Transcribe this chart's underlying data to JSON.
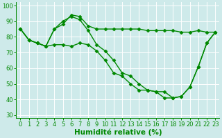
{
  "background_color": "#ceeaea",
  "grid_color": "#ffffff",
  "line_color": "#008800",
  "marker": "D",
  "markersize": 2.5,
  "linewidth": 1.0,
  "xlabel": "Humidité relative (%)",
  "xlabel_color": "#008800",
  "xlabel_fontsize": 7.5,
  "tick_color": "#008800",
  "tick_fontsize": 6,
  "ylim": [
    28,
    102
  ],
  "xlim": [
    -0.5,
    23.5
  ],
  "yticks": [
    30,
    40,
    50,
    60,
    70,
    80,
    90,
    100
  ],
  "xticks": [
    0,
    1,
    2,
    3,
    4,
    5,
    6,
    7,
    8,
    9,
    10,
    11,
    12,
    13,
    14,
    15,
    16,
    17,
    18,
    19,
    20,
    21,
    22,
    23
  ],
  "series": [
    [
      85,
      78,
      76,
      74,
      85,
      88,
      94,
      93,
      87,
      85,
      85,
      85,
      85,
      85,
      85,
      84,
      84,
      84,
      84,
      83,
      83,
      84,
      83,
      83
    ],
    [
      85,
      78,
      76,
      74,
      85,
      90,
      93,
      91,
      84,
      75,
      71,
      65,
      57,
      55,
      50,
      46,
      45,
      45,
      41,
      42,
      48,
      61,
      76,
      83
    ],
    [
      85,
      78,
      76,
      74,
      75,
      75,
      74,
      76,
      75,
      71,
      65,
      57,
      55,
      50,
      46,
      46,
      45,
      41,
      41,
      42,
      48,
      61,
      76,
      83
    ]
  ]
}
